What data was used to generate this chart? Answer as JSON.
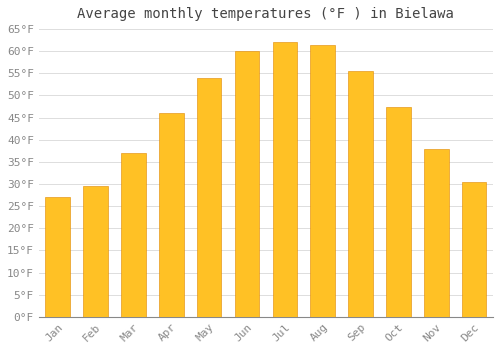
{
  "title": "Average monthly temperatures (°F ) in Bielawa",
  "months": [
    "Jan",
    "Feb",
    "Mar",
    "Apr",
    "May",
    "Jun",
    "Jul",
    "Aug",
    "Sep",
    "Oct",
    "Nov",
    "Dec"
  ],
  "values": [
    27,
    29.5,
    37,
    46,
    54,
    60,
    62,
    61.5,
    55.5,
    47.5,
    38,
    30.5
  ],
  "bar_color_top": "#FFC125",
  "bar_color_bottom": "#FFA020",
  "background_color": "#FFFFFF",
  "grid_color": "#DDDDDD",
  "ylim": [
    0,
    65
  ],
  "ytick_step": 5,
  "title_fontsize": 10,
  "tick_fontsize": 8,
  "tick_color": "#888888",
  "title_color": "#444444",
  "font_family": "monospace"
}
